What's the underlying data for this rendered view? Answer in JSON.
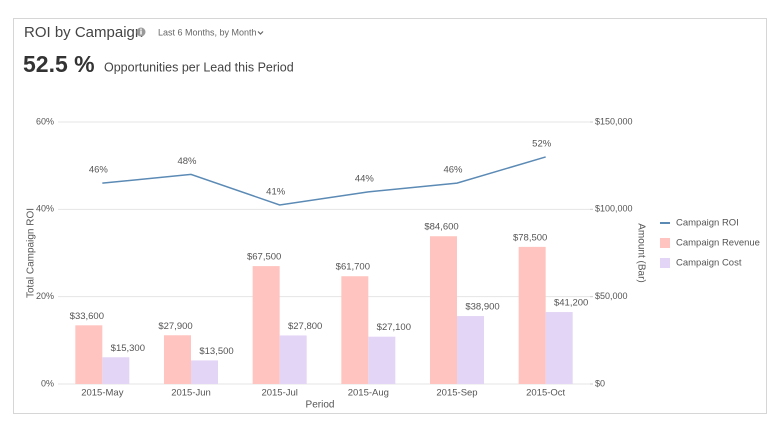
{
  "header": {
    "title": "ROI by Campaign",
    "period_selector": "Last 6 Months, by Month",
    "kpi_value": "52.5 %",
    "kpi_label": "Opportunities per Lead this Period"
  },
  "chart_data": {
    "type": "bar",
    "x_label": "Period",
    "y_label": "Total Campaign ROI",
    "y2_label": "Amount (Bar)",
    "categories": [
      "2015-May",
      "2015-Jun",
      "2015-Jul",
      "2015-Aug",
      "2015-Sep",
      "2015-Oct"
    ],
    "series": [
      {
        "name": "Campaign ROI",
        "type": "line",
        "axis": "y",
        "color": "#5b8ab5",
        "values": [
          46,
          48,
          41,
          44,
          46,
          52
        ],
        "value_labels": [
          "46%",
          "48%",
          "41%",
          "44%",
          "46%",
          "52%"
        ]
      },
      {
        "name": "Campaign Revenue",
        "type": "bar",
        "axis": "y2",
        "color": "#ffc4bf",
        "values": [
          33600,
          27900,
          67500,
          61700,
          84600,
          78500
        ],
        "value_labels": [
          "$33,600",
          "$27,900",
          "$67,500",
          "$61,700",
          "$84,600",
          "$78,500"
        ]
      },
      {
        "name": "Campaign Cost",
        "type": "bar",
        "axis": "y2",
        "color": "#e3d5f5",
        "values": [
          15300,
          13500,
          27800,
          27100,
          38900,
          41200
        ],
        "value_labels": [
          "$15,300",
          "$13,500",
          "$27,800",
          "$27,100",
          "$38,900",
          "$41,200"
        ]
      }
    ],
    "ylim": [
      0,
      60
    ],
    "yticks": [
      {
        "value": 0,
        "label": "0%"
      },
      {
        "value": 20,
        "label": "20%"
      },
      {
        "value": 40,
        "label": "40%"
      },
      {
        "value": 60,
        "label": "60%"
      }
    ],
    "y2lim": [
      0,
      150000
    ],
    "y2ticks": [
      {
        "value": 0,
        "label": "$0"
      },
      {
        "value": 50000,
        "label": "$50,000"
      },
      {
        "value": 100000,
        "label": "$100,000"
      },
      {
        "value": 150000,
        "label": "$150,000"
      }
    ],
    "grid": true,
    "legend": "right"
  }
}
